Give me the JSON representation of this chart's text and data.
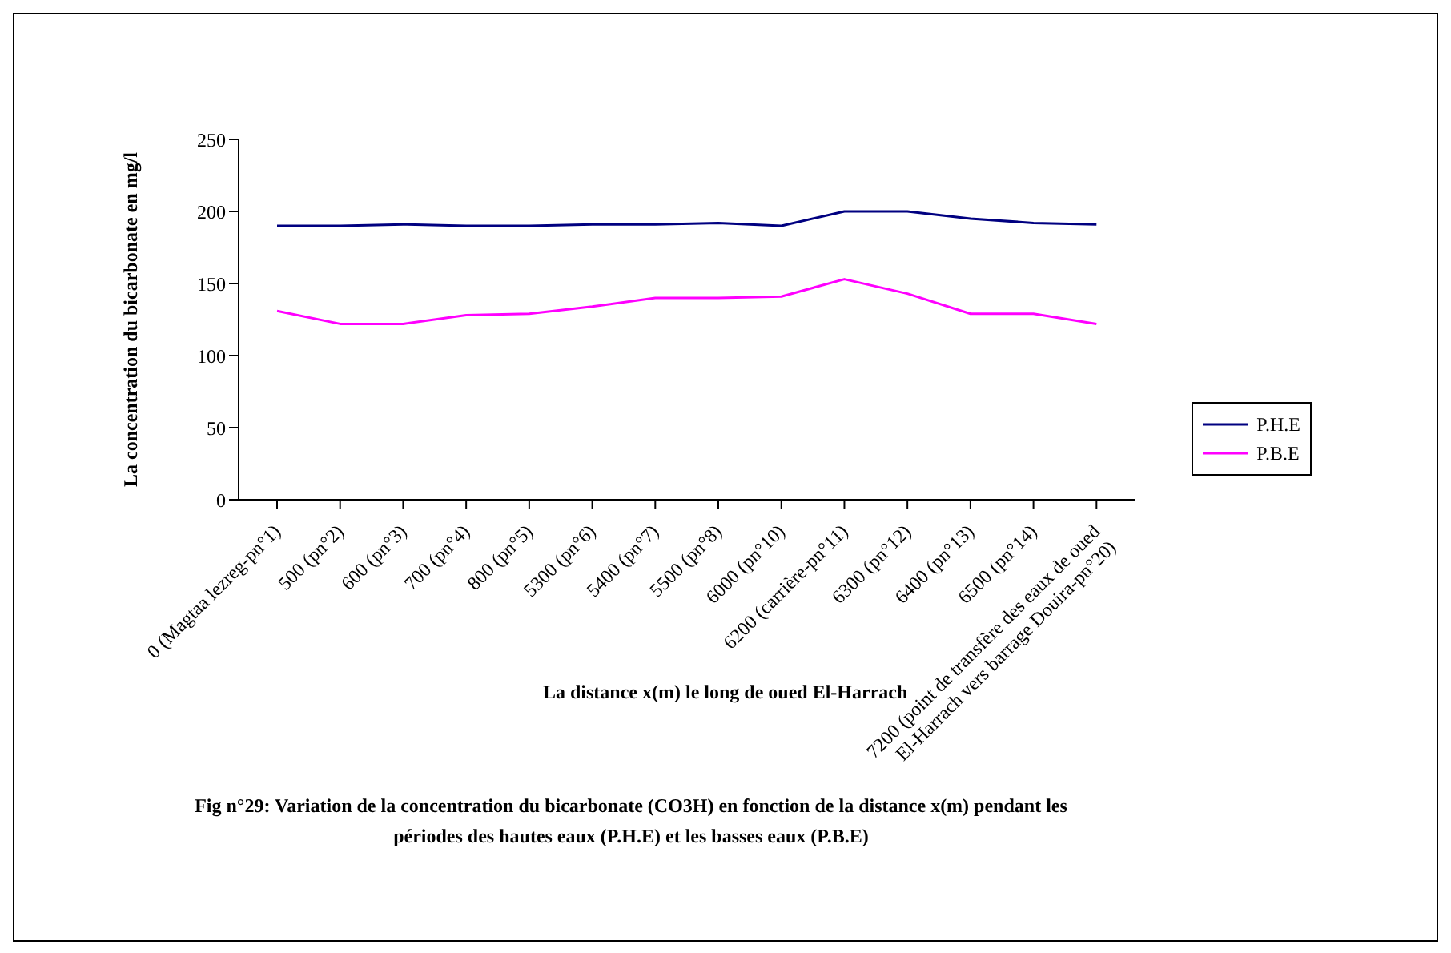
{
  "chart_data": {
    "type": "line",
    "title": "Fig n°29: Variation de la concentration du bicarbonate (CO3H) en fonction de la distance x(m) pendant les périodes des hautes eaux (P.H.E) et les basses eaux (P.B.E)",
    "xlabel": "La distance x(m) le long de oued El-Harrach",
    "ylabel": "La concentration du bicarbonate en mg/l",
    "categories": [
      "0 (Magtaa lezreg-pn°1)",
      "500 (pn°2)",
      "600 (pn°3)",
      "700 (pn°4)",
      "800 (pn°5)",
      "5300 (pn°6)",
      "5400 (pn°7)",
      "5500 (pn°8)",
      "6000 (pn°10)",
      "6200 (carrière-pn°11)",
      "6300 (pn°12)",
      "6400 (pn°13)",
      "6500 (pn°14)",
      "7200 (point de transfère des eaux de oued El-Harrach vers barrage Douira-pn°20)"
    ],
    "series": [
      {
        "name": "P.H.E",
        "color": "#000080",
        "values": [
          190,
          190,
          191,
          190,
          190,
          191,
          191,
          192,
          190,
          200,
          200,
          195,
          192,
          191
        ]
      },
      {
        "name": "P.B.E",
        "color": "#ff00ff",
        "values": [
          131,
          122,
          122,
          128,
          129,
          134,
          140,
          140,
          141,
          153,
          143,
          129,
          129,
          122
        ]
      }
    ],
    "ylim": [
      0,
      250
    ],
    "yticks": [
      0,
      50,
      100,
      150,
      200,
      250
    ],
    "grid": false,
    "legend": "right",
    "marker": "none",
    "line_style": "solid"
  }
}
